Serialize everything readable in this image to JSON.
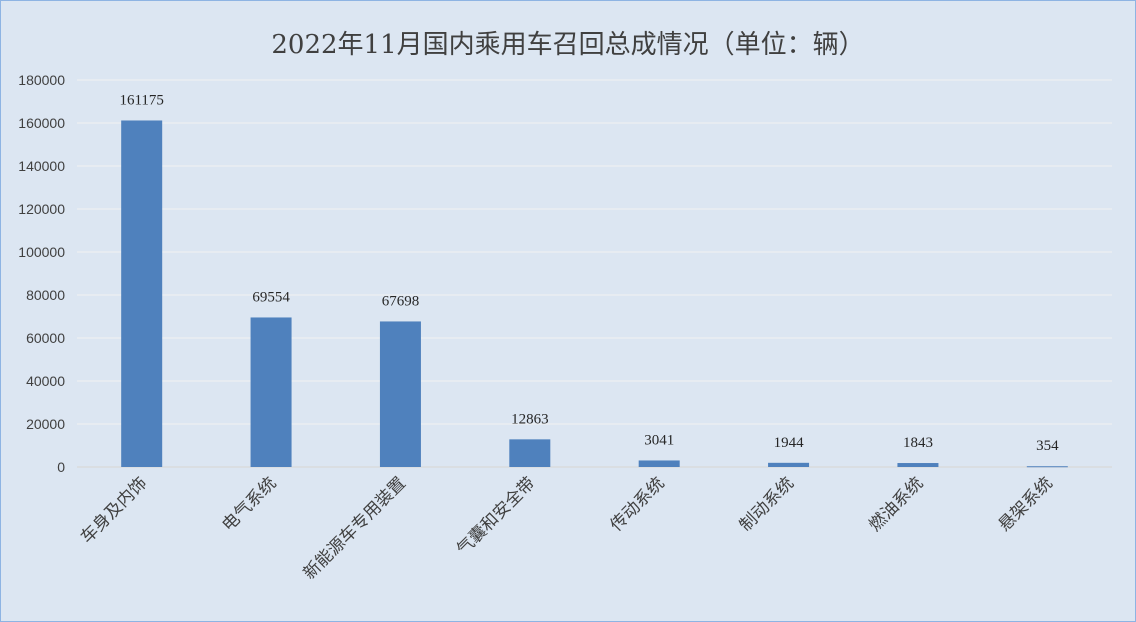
{
  "chart_data": {
    "type": "bar",
    "title": "2022年11月国内乘用车召回总成情况（单位：辆）",
    "categories": [
      "车身及内饰",
      "电气系统",
      "新能源车专用装置",
      "气囊和安全带",
      "传动系统",
      "制动系统",
      "燃油系统",
      "悬架系统"
    ],
    "values": [
      161175,
      69554,
      67698,
      12863,
      3041,
      1944,
      1843,
      354
    ],
    "data_labels": [
      "161175",
      "69554",
      "67698",
      "12863",
      "3041",
      "1944",
      "1843",
      "354"
    ],
    "y_ticks": [
      "0",
      "20000",
      "40000",
      "60000",
      "80000",
      "100000",
      "120000",
      "140000",
      "160000",
      "180000"
    ],
    "ylim": [
      0,
      180000
    ],
    "grid": true,
    "legend": "none",
    "bar_color": "#4f81bd",
    "background_color": "#dce6f2",
    "border_color": "#8eb4e3",
    "gridline_color": "#f2f2f2"
  }
}
